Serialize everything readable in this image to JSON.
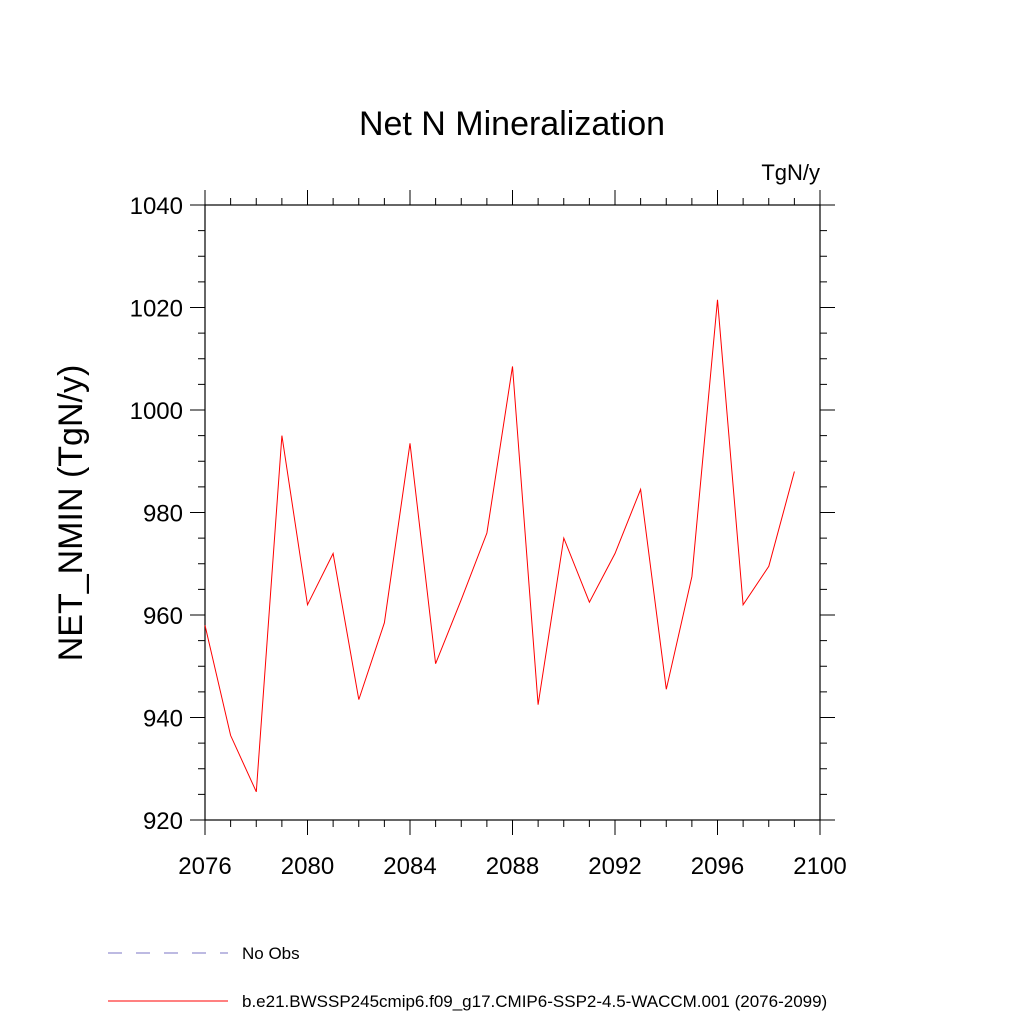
{
  "chart_data": {
    "type": "line",
    "title": "Net N Mineralization",
    "units_label": "TgN/y",
    "ylabel": "NET_NMIN  (TgN/y)",
    "xlabel": "",
    "xlim": [
      2076,
      2100
    ],
    "ylim": [
      920,
      1040
    ],
    "x_ticks": [
      2076,
      2080,
      2084,
      2088,
      2092,
      2096,
      2100
    ],
    "y_ticks": [
      920,
      940,
      960,
      980,
      1000,
      1020,
      1040
    ],
    "x_minor_step": 1,
    "y_minor_step": 5,
    "grid": false,
    "legend_position": "bottom",
    "series": [
      {
        "name": "b.e21.BWSSP245cmip6.f09_g17.CMIP6-SSP2-4.5-WACCM.001 (2076-2099)",
        "color": "#ff0000",
        "x": [
          2076,
          2077,
          2078,
          2079,
          2080,
          2081,
          2082,
          2083,
          2084,
          2085,
          2086,
          2087,
          2088,
          2089,
          2090,
          2091,
          2092,
          2093,
          2094,
          2095,
          2096,
          2097,
          2098,
          2099
        ],
        "values": [
          958,
          936.5,
          925.5,
          995,
          962,
          972,
          943.5,
          958.5,
          993.5,
          950.5,
          963,
          976,
          1008.5,
          942.5,
          975,
          962.5,
          972,
          984.5,
          945.5,
          967.5,
          1021.5,
          962,
          969.5,
          988
        ]
      }
    ],
    "legend": [
      {
        "label": "No Obs",
        "style": "dashed",
        "color": "#7b74c6"
      },
      {
        "label": "b.e21.BWSSP245cmip6.f09_g17.CMIP6-SSP2-4.5-WACCM.001 (2076-2099)",
        "style": "solid",
        "color": "#ff0000"
      }
    ]
  }
}
